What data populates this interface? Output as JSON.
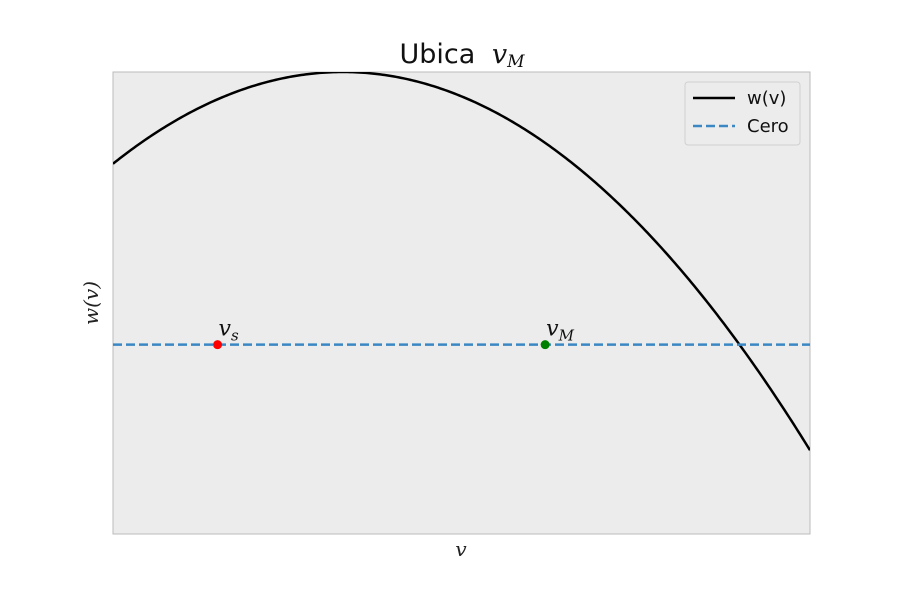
{
  "chart_data": {
    "type": "line",
    "title": {
      "text": "Ubica",
      "math_base": "v",
      "math_sub": "M"
    },
    "xlabel": "v",
    "ylabel": "w(v)",
    "grid": false,
    "background": "#ececec",
    "xticks": [],
    "yticks": [],
    "xlim": [
      0,
      1
    ],
    "ylim": [
      -1,
      1.44
    ],
    "legend": {
      "position": "top-right",
      "entries": [
        {
          "label": "w(v)",
          "style": "solid",
          "color": "#000000"
        },
        {
          "label": "Cero",
          "style": "dashed",
          "color": "#3a87c4"
        }
      ]
    },
    "series": [
      {
        "name": "w(v)",
        "color": "#000000",
        "style": "solid",
        "function": "w(v) = 1.44 - 4.45*(v - 0.33)^2 (approximate, reading from figure)"
      },
      {
        "name": "Cero",
        "color": "#3a87c4",
        "style": "dashed",
        "y": 0
      }
    ],
    "points": [
      {
        "name": "v_s",
        "label_base": "v",
        "label_sub": "s",
        "x": 0.15,
        "y": 0,
        "color": "#ff0000"
      },
      {
        "name": "v_M",
        "label_base": "v",
        "label_sub": "M",
        "x": 0.62,
        "y": 0,
        "color": "#008000"
      }
    ]
  }
}
